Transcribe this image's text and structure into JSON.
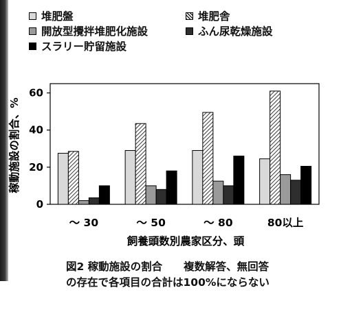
{
  "chart_data": {
    "type": "bar",
    "categories": [
      "～ 30",
      "～ 50",
      "～ 80",
      "80以上"
    ],
    "series": [
      {
        "name": "堆肥盤",
        "values": [
          27.5,
          29,
          29,
          24.5
        ],
        "style": "light-gray"
      },
      {
        "name": "堆肥舎",
        "values": [
          28.5,
          43.5,
          49.5,
          61
        ],
        "style": "hatched"
      },
      {
        "name": "開放型攪拌堆肥化施設",
        "values": [
          2,
          10,
          12.5,
          16
        ],
        "style": "mid-gray"
      },
      {
        "name": "ふん尿乾燥施設",
        "values": [
          3.5,
          8,
          10,
          13
        ],
        "style": "dark"
      },
      {
        "name": "スラリー貯留施設",
        "values": [
          10,
          18,
          26,
          20.5
        ],
        "style": "black"
      }
    ],
    "xlabel": "飼養頭数別農家区分、頭",
    "ylabel": "稼動施設の割合、%",
    "ylim": [
      0,
      65
    ],
    "yticks": [
      0,
      20,
      40,
      60
    ],
    "grid": false,
    "legend_placement": "top"
  },
  "colors": {
    "light-gray": "#d9d9d9",
    "mid-gray": "#9a9a9a",
    "dark": "#2e2e2e",
    "black": "#000000"
  },
  "caption": {
    "line1": "図2 稼動施設の割合　　複数解答、無回答",
    "line2": "の存在で各項目の合計は100%にならない"
  }
}
